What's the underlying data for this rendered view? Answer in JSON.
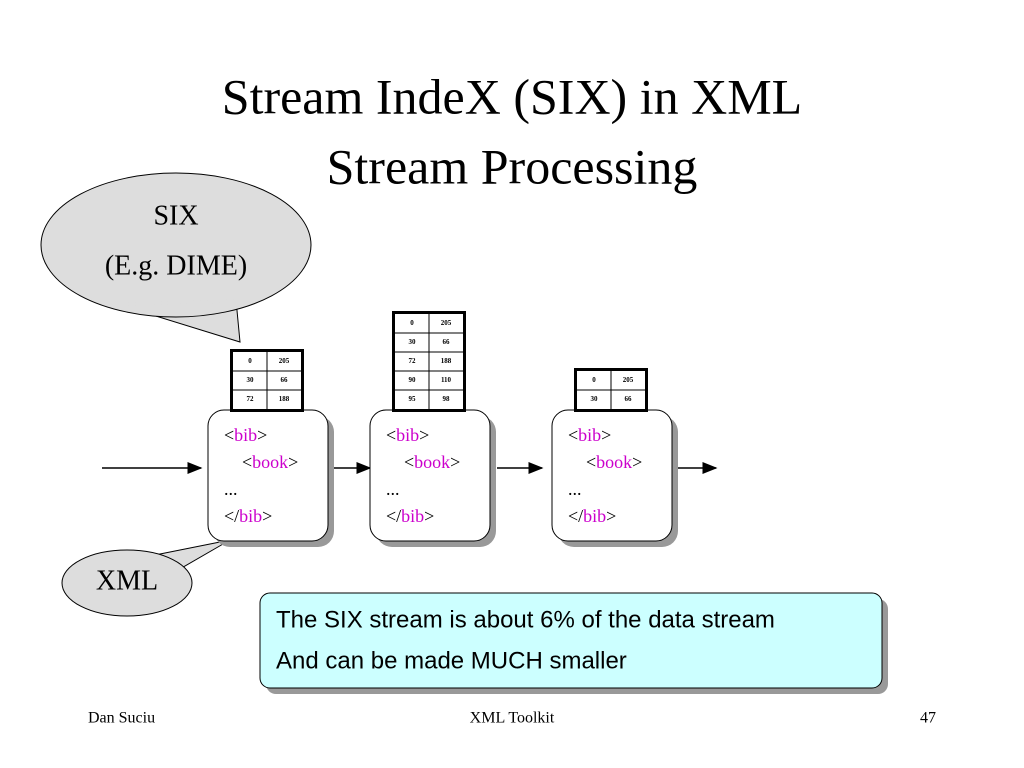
{
  "title": {
    "lines": [
      "Stream IndeX (SIX) in XML",
      "Stream Processing"
    ]
  },
  "six_callout": {
    "lines": [
      "SIX",
      "(E.g. DIME)"
    ]
  },
  "xml_callout": {
    "label": "XML"
  },
  "stream": [
    {
      "table": [
        [
          0,
          205
        ],
        [
          30,
          66
        ],
        [
          72,
          188
        ]
      ],
      "lines": [
        {
          "pre": "<",
          "tag": "bib",
          "post": ">"
        },
        {
          "pre": "<",
          "tag": "book",
          "post": ">"
        },
        {
          "text": "..."
        },
        {
          "pre": "</",
          "tag": "bib",
          "post": ">"
        }
      ]
    },
    {
      "table": [
        [
          0,
          205
        ],
        [
          30,
          66
        ],
        [
          72,
          188
        ],
        [
          90,
          110
        ],
        [
          95,
          98
        ]
      ],
      "lines": [
        {
          "pre": "<",
          "tag": "bib",
          "post": ">"
        },
        {
          "pre": "<",
          "tag": "book",
          "post": ">"
        },
        {
          "text": "..."
        },
        {
          "pre": "</",
          "tag": "bib",
          "post": ">"
        }
      ]
    },
    {
      "table": [
        [
          0,
          205
        ],
        [
          30,
          66
        ]
      ],
      "lines": [
        {
          "pre": "<",
          "tag": "bib",
          "post": ">"
        },
        {
          "pre": "<",
          "tag": "book",
          "post": ">"
        },
        {
          "text": "..."
        },
        {
          "pre": "</",
          "tag": "bib",
          "post": ">"
        }
      ]
    }
  ],
  "note": {
    "lines": [
      "The SIX stream is about 6% of the data stream",
      "And can be made MUCH smaller"
    ]
  },
  "footer": {
    "author": "Dan Suciu",
    "course": "XML Toolkit",
    "page": "47"
  }
}
